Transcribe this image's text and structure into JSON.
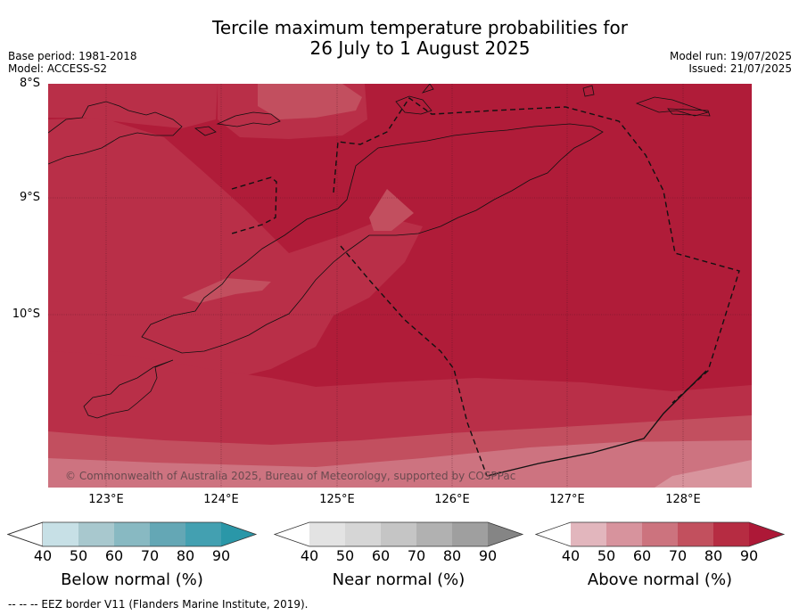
{
  "title_line1": "Tercile maximum temperature probabilities for",
  "title_line2": "26 July to 1 August 2025",
  "base_period": "Base period: 1981-2018",
  "model": "Model: ACCESS-S2",
  "model_run": "Model run: 19/07/2025",
  "issued": "Issued: 21/07/2025",
  "lat_labels": [
    "8°S",
    "9°S",
    "10°S"
  ],
  "lon_labels": [
    "123°E",
    "124°E",
    "125°E",
    "126°E",
    "127°E",
    "128°E"
  ],
  "copyright": "© Commonwealth of Australia 2025, Bureau of Meteorology, supported by COSPPac",
  "colorbars": [
    {
      "title": "Below normal (%)",
      "ticks": [
        "40",
        "50",
        "60",
        "70",
        "80",
        "90"
      ],
      "colors": [
        "#ffffff",
        "#c7e0e6",
        "#a8c8ce",
        "#88b9c2",
        "#64a7b5",
        "#43a0b1",
        "#2a97a8"
      ]
    },
    {
      "title": "Near normal (%)",
      "ticks": [
        "40",
        "50",
        "60",
        "70",
        "80",
        "90"
      ],
      "colors": [
        "#ffffff",
        "#e3e3e3",
        "#d6d6d6",
        "#c5c5c5",
        "#b1b1b1",
        "#9f9f9f",
        "#858585"
      ]
    },
    {
      "title": "Above normal (%)",
      "ticks": [
        "40",
        "50",
        "60",
        "70",
        "80",
        "90"
      ],
      "colors": [
        "#ffffff",
        "#e2b6bd",
        "#d7939d",
        "#cc737e",
        "#c2505e",
        "#b62c42",
        "#ad1837"
      ]
    }
  ],
  "footnote": "-- -- -- EEZ border V11 (Flanders Marine Institute, 2019).",
  "colors": {
    "above_90": "#b01c39",
    "above_80": "#b92f48",
    "above_70": "#c24f5f",
    "above_60": "#cd7380",
    "above_50": "#d8949d"
  }
}
